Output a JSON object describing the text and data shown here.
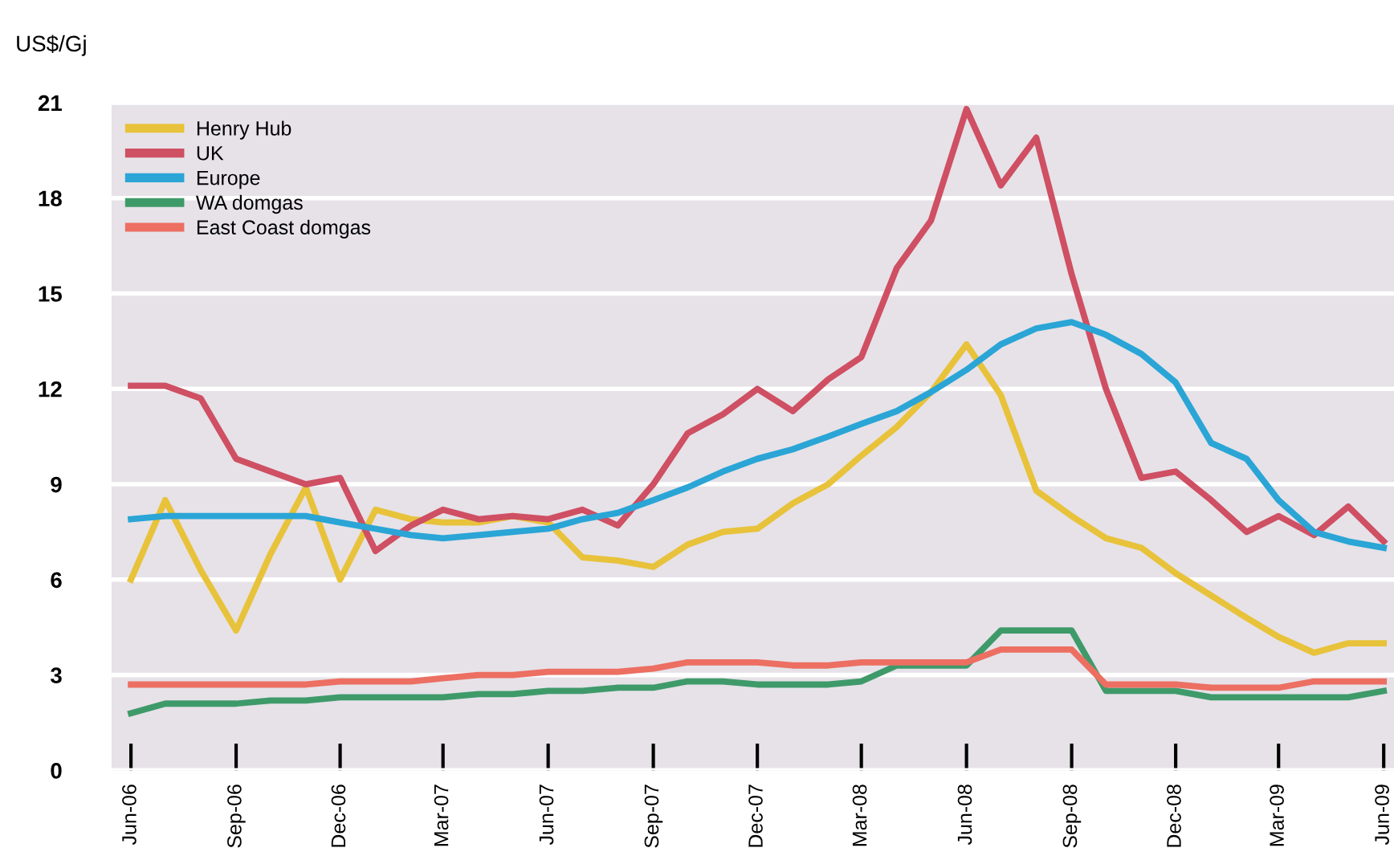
{
  "chart_data": {
    "type": "line",
    "ylabel": "US$/Gj",
    "x": [
      "2006-06",
      "2006-07",
      "2006-08",
      "2006-09",
      "2006-10",
      "2006-11",
      "2006-12",
      "2007-01",
      "2007-02",
      "2007-03",
      "2007-04",
      "2007-05",
      "2007-06",
      "2007-07",
      "2007-08",
      "2007-09",
      "2007-10",
      "2007-11",
      "2007-12",
      "2008-01",
      "2008-02",
      "2008-03",
      "2008-04",
      "2008-05",
      "2008-06",
      "2008-07",
      "2008-08",
      "2008-09",
      "2008-10",
      "2008-11",
      "2008-12",
      "2009-01",
      "2009-02",
      "2009-03",
      "2009-04",
      "2009-05",
      "2009-06"
    ],
    "series": [
      {
        "name": "Henry Hub",
        "color": "#e8c23a",
        "values": [
          6.0,
          8.5,
          6.3,
          4.4,
          6.8,
          8.9,
          6.0,
          8.2,
          7.9,
          7.8,
          7.8,
          8.0,
          7.8,
          6.7,
          6.6,
          6.4,
          7.1,
          7.5,
          7.6,
          8.4,
          9.0,
          9.9,
          10.8,
          11.9,
          13.4,
          11.8,
          8.8,
          8.0,
          7.3,
          7.0,
          6.2,
          5.5,
          4.8,
          4.2,
          3.7,
          4.0,
          4.0
        ]
      },
      {
        "name": "UK",
        "color": "#cf4f63",
        "values": [
          12.1,
          12.1,
          11.7,
          9.8,
          9.4,
          9.0,
          9.2,
          6.9,
          7.7,
          8.2,
          7.9,
          8.0,
          7.9,
          8.2,
          7.7,
          9.0,
          10.6,
          11.2,
          12.0,
          11.3,
          12.3,
          13.0,
          15.8,
          17.3,
          20.8,
          18.4,
          19.9,
          15.6,
          12.0,
          9.2,
          9.4,
          8.5,
          7.5,
          8.0,
          7.4,
          8.3,
          7.2
        ]
      },
      {
        "name": "Europe",
        "color": "#2aa5d6",
        "values": [
          7.9,
          8.0,
          8.0,
          8.0,
          8.0,
          8.0,
          7.8,
          7.6,
          7.4,
          7.3,
          7.4,
          7.5,
          7.6,
          7.9,
          8.1,
          8.5,
          8.9,
          9.4,
          9.8,
          10.1,
          10.5,
          10.9,
          11.3,
          11.9,
          12.6,
          13.4,
          13.9,
          14.1,
          13.7,
          13.1,
          12.2,
          10.3,
          9.8,
          8.5,
          7.5,
          7.2,
          7.0
        ]
      },
      {
        "name": "WA domgas",
        "color": "#3f9a6a",
        "values": [
          1.8,
          2.1,
          2.1,
          2.1,
          2.2,
          2.2,
          2.3,
          2.3,
          2.3,
          2.3,
          2.4,
          2.4,
          2.5,
          2.5,
          2.6,
          2.6,
          2.8,
          2.8,
          2.7,
          2.7,
          2.7,
          2.8,
          3.3,
          3.3,
          3.3,
          4.4,
          4.4,
          4.4,
          2.5,
          2.5,
          2.5,
          2.3,
          2.3,
          2.3,
          2.3,
          2.3,
          2.5
        ]
      },
      {
        "name": "East Coast domgas",
        "color": "#ec6f62",
        "values": [
          2.7,
          2.7,
          2.7,
          2.7,
          2.7,
          2.7,
          2.8,
          2.8,
          2.8,
          2.9,
          3.0,
          3.0,
          3.1,
          3.1,
          3.1,
          3.2,
          3.4,
          3.4,
          3.4,
          3.3,
          3.3,
          3.4,
          3.4,
          3.4,
          3.4,
          3.8,
          3.8,
          3.8,
          2.7,
          2.7,
          2.7,
          2.6,
          2.6,
          2.6,
          2.8,
          2.8,
          2.8
        ]
      }
    ],
    "xlim": [
      "2006-05-15",
      "2009-06-10"
    ],
    "xticks": [
      {
        "value": "2006-06",
        "label": "Jun-06"
      },
      {
        "value": "2006-09",
        "label": "Sep-06"
      },
      {
        "value": "2006-12",
        "label": "Dec-06"
      },
      {
        "value": "2007-03",
        "label": "Mar-07"
      },
      {
        "value": "2007-06",
        "label": "Jun-07"
      },
      {
        "value": "2007-09",
        "label": "Sep-07"
      },
      {
        "value": "2007-12",
        "label": "Dec-07"
      },
      {
        "value": "2008-03",
        "label": "Mar-08"
      },
      {
        "value": "2008-06",
        "label": "Jun-08"
      },
      {
        "value": "2008-09",
        "label": "Sep-08"
      },
      {
        "value": "2008-12",
        "label": "Dec-08"
      },
      {
        "value": "2009-03",
        "label": "Mar-09"
      },
      {
        "value": "2009-06",
        "label": "Jun-09"
      }
    ],
    "ylim": [
      0,
      21
    ],
    "yticks": [
      0,
      3,
      6,
      9,
      12,
      15,
      18,
      21
    ],
    "grid": "y",
    "legend": "top left",
    "marker": "none",
    "line_style": "solid"
  }
}
